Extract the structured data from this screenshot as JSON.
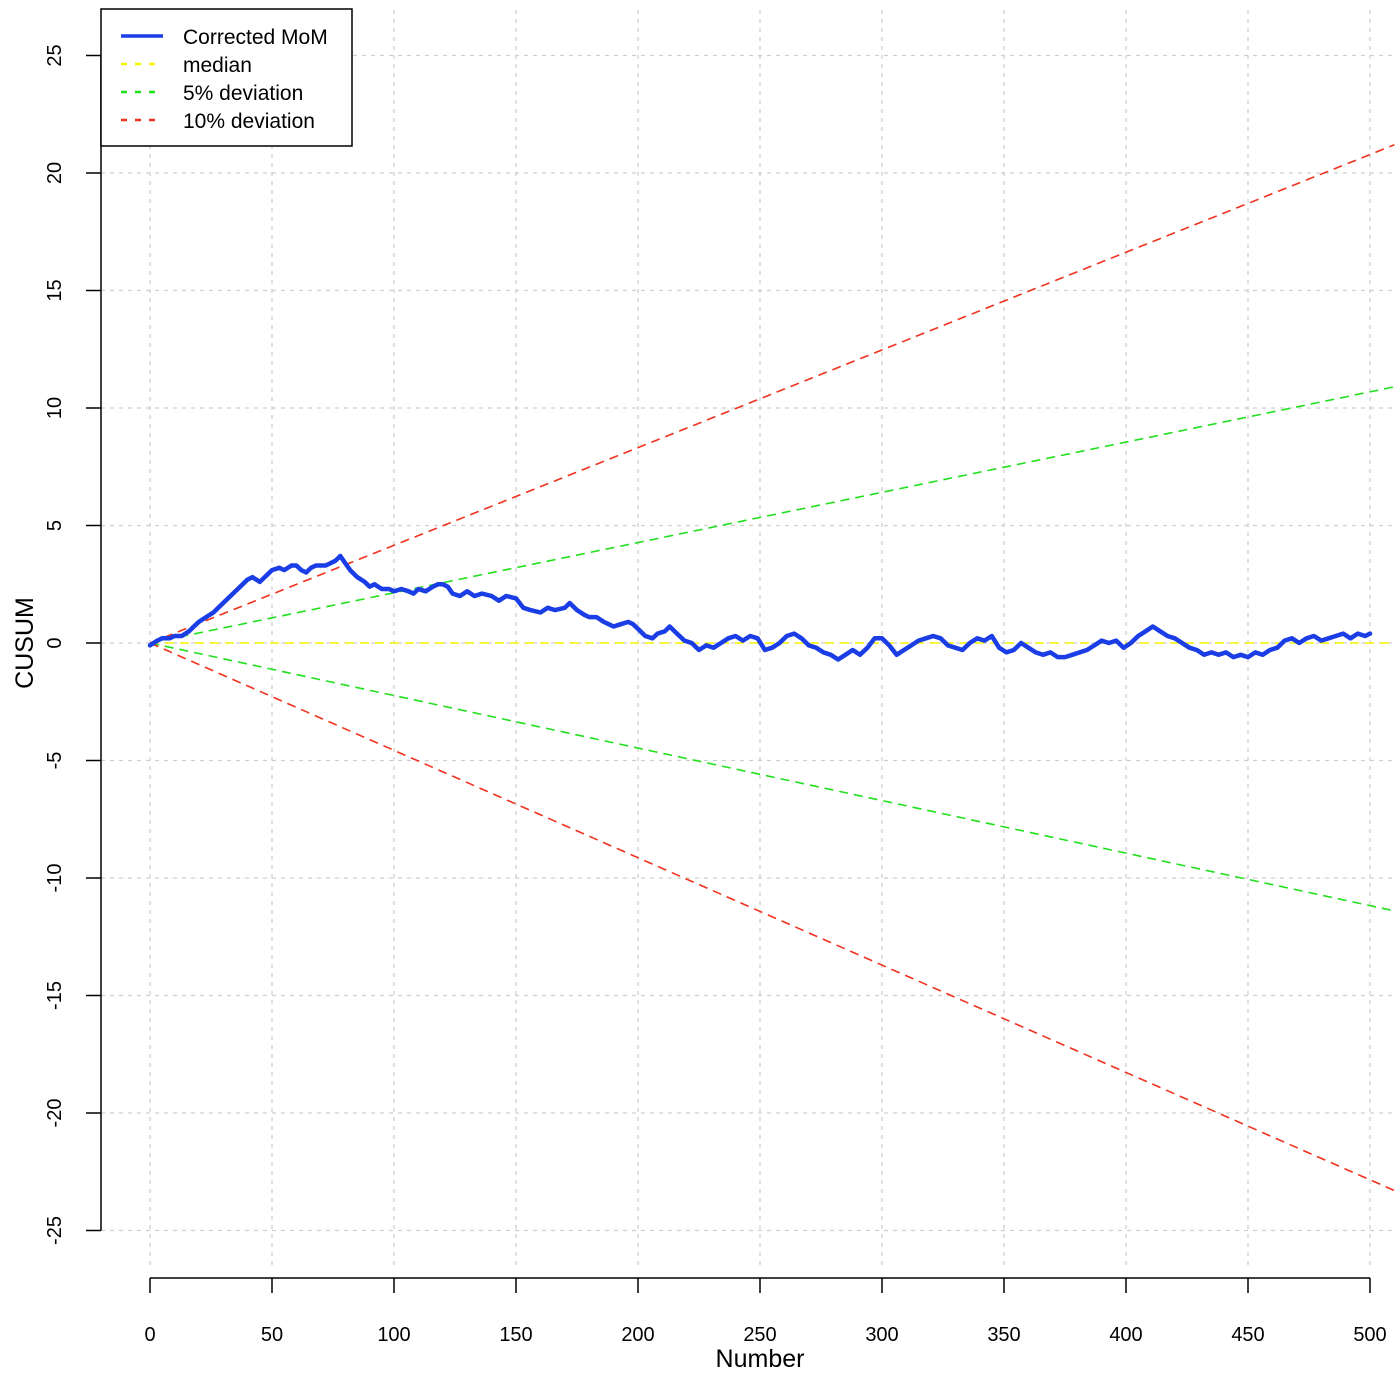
{
  "chart_data": {
    "type": "line",
    "title": "",
    "xlabel": "Number",
    "ylabel": "CUSUM",
    "xlim": [
      0,
      510
    ],
    "ylim": [
      -25,
      25
    ],
    "xticks": [
      0,
      50,
      100,
      150,
      200,
      250,
      300,
      350,
      400,
      450,
      500
    ],
    "yticks": [
      -25,
      -20,
      -15,
      -10,
      -5,
      0,
      5,
      10,
      15,
      20,
      25
    ],
    "grid": true,
    "legend_position": "top-left",
    "series": [
      {
        "name": "Corrected MoM",
        "color": "#1a3de6",
        "style": "solid",
        "points": [
          [
            0,
            -0.1
          ],
          [
            3,
            0.1
          ],
          [
            5,
            0.2
          ],
          [
            8,
            0.2
          ],
          [
            10,
            0.3
          ],
          [
            13,
            0.3
          ],
          [
            16,
            0.5
          ],
          [
            18,
            0.7
          ],
          [
            20,
            0.9
          ],
          [
            23,
            1.1
          ],
          [
            26,
            1.3
          ],
          [
            28,
            1.5
          ],
          [
            30,
            1.7
          ],
          [
            33,
            2.0
          ],
          [
            36,
            2.3
          ],
          [
            38,
            2.5
          ],
          [
            40,
            2.7
          ],
          [
            42,
            2.8
          ],
          [
            45,
            2.6
          ],
          [
            48,
            2.9
          ],
          [
            50,
            3.1
          ],
          [
            53,
            3.2
          ],
          [
            55,
            3.1
          ],
          [
            58,
            3.3
          ],
          [
            60,
            3.3
          ],
          [
            62,
            3.1
          ],
          [
            64,
            3.0
          ],
          [
            66,
            3.2
          ],
          [
            68,
            3.3
          ],
          [
            70,
            3.3
          ],
          [
            72,
            3.3
          ],
          [
            74,
            3.4
          ],
          [
            76,
            3.5
          ],
          [
            78,
            3.7
          ],
          [
            80,
            3.4
          ],
          [
            82,
            3.1
          ],
          [
            85,
            2.8
          ],
          [
            88,
            2.6
          ],
          [
            90,
            2.4
          ],
          [
            92,
            2.5
          ],
          [
            95,
            2.3
          ],
          [
            98,
            2.3
          ],
          [
            100,
            2.2
          ],
          [
            103,
            2.3
          ],
          [
            106,
            2.2
          ],
          [
            108,
            2.1
          ],
          [
            110,
            2.3
          ],
          [
            113,
            2.2
          ],
          [
            116,
            2.4
          ],
          [
            118,
            2.5
          ],
          [
            120,
            2.5
          ],
          [
            122,
            2.4
          ],
          [
            124,
            2.1
          ],
          [
            127,
            2.0
          ],
          [
            130,
            2.2
          ],
          [
            133,
            2.0
          ],
          [
            136,
            2.1
          ],
          [
            140,
            2.0
          ],
          [
            143,
            1.8
          ],
          [
            146,
            2.0
          ],
          [
            150,
            1.9
          ],
          [
            153,
            1.5
          ],
          [
            156,
            1.4
          ],
          [
            160,
            1.3
          ],
          [
            163,
            1.5
          ],
          [
            166,
            1.4
          ],
          [
            170,
            1.5
          ],
          [
            172,
            1.7
          ],
          [
            175,
            1.4
          ],
          [
            178,
            1.2
          ],
          [
            180,
            1.1
          ],
          [
            183,
            1.1
          ],
          [
            186,
            0.9
          ],
          [
            188,
            0.8
          ],
          [
            190,
            0.7
          ],
          [
            193,
            0.8
          ],
          [
            196,
            0.9
          ],
          [
            198,
            0.8
          ],
          [
            200,
            0.6
          ],
          [
            203,
            0.3
          ],
          [
            206,
            0.2
          ],
          [
            208,
            0.4
          ],
          [
            211,
            0.5
          ],
          [
            213,
            0.7
          ],
          [
            216,
            0.4
          ],
          [
            219,
            0.1
          ],
          [
            222,
            0.0
          ],
          [
            225,
            -0.3
          ],
          [
            228,
            -0.1
          ],
          [
            231,
            -0.2
          ],
          [
            234,
            0.0
          ],
          [
            237,
            0.2
          ],
          [
            240,
            0.3
          ],
          [
            243,
            0.1
          ],
          [
            246,
            0.3
          ],
          [
            249,
            0.2
          ],
          [
            252,
            -0.3
          ],
          [
            255,
            -0.2
          ],
          [
            258,
            0.0
          ],
          [
            261,
            0.3
          ],
          [
            264,
            0.4
          ],
          [
            267,
            0.2
          ],
          [
            270,
            -0.1
          ],
          [
            273,
            -0.2
          ],
          [
            276,
            -0.4
          ],
          [
            279,
            -0.5
          ],
          [
            282,
            -0.7
          ],
          [
            285,
            -0.5
          ],
          [
            288,
            -0.3
          ],
          [
            291,
            -0.5
          ],
          [
            294,
            -0.2
          ],
          [
            297,
            0.2
          ],
          [
            300,
            0.2
          ],
          [
            303,
            -0.1
          ],
          [
            306,
            -0.5
          ],
          [
            309,
            -0.3
          ],
          [
            312,
            -0.1
          ],
          [
            315,
            0.1
          ],
          [
            318,
            0.2
          ],
          [
            321,
            0.3
          ],
          [
            324,
            0.2
          ],
          [
            327,
            -0.1
          ],
          [
            330,
            -0.2
          ],
          [
            333,
            -0.3
          ],
          [
            336,
            0.0
          ],
          [
            339,
            0.2
          ],
          [
            342,
            0.1
          ],
          [
            345,
            0.3
          ],
          [
            348,
            -0.2
          ],
          [
            351,
            -0.4
          ],
          [
            354,
            -0.3
          ],
          [
            357,
            0.0
          ],
          [
            360,
            -0.2
          ],
          [
            363,
            -0.4
          ],
          [
            366,
            -0.5
          ],
          [
            369,
            -0.4
          ],
          [
            372,
            -0.6
          ],
          [
            375,
            -0.6
          ],
          [
            378,
            -0.5
          ],
          [
            381,
            -0.4
          ],
          [
            384,
            -0.3
          ],
          [
            387,
            -0.1
          ],
          [
            390,
            0.1
          ],
          [
            393,
            0.0
          ],
          [
            396,
            0.1
          ],
          [
            399,
            -0.2
          ],
          [
            402,
            0.0
          ],
          [
            405,
            0.3
          ],
          [
            408,
            0.5
          ],
          [
            411,
            0.7
          ],
          [
            414,
            0.5
          ],
          [
            417,
            0.3
          ],
          [
            420,
            0.2
          ],
          [
            423,
            0.0
          ],
          [
            426,
            -0.2
          ],
          [
            429,
            -0.3
          ],
          [
            432,
            -0.5
          ],
          [
            435,
            -0.4
          ],
          [
            438,
            -0.5
          ],
          [
            441,
            -0.4
          ],
          [
            444,
            -0.6
          ],
          [
            447,
            -0.5
          ],
          [
            450,
            -0.6
          ],
          [
            453,
            -0.4
          ],
          [
            456,
            -0.5
          ],
          [
            459,
            -0.3
          ],
          [
            462,
            -0.2
          ],
          [
            465,
            0.1
          ],
          [
            468,
            0.2
          ],
          [
            471,
            0.0
          ],
          [
            474,
            0.2
          ],
          [
            477,
            0.3
          ],
          [
            480,
            0.1
          ],
          [
            483,
            0.2
          ],
          [
            486,
            0.3
          ],
          [
            489,
            0.4
          ],
          [
            492,
            0.2
          ],
          [
            495,
            0.4
          ],
          [
            498,
            0.3
          ],
          [
            500,
            0.4
          ]
        ]
      },
      {
        "name": "median",
        "color": "#f5f500",
        "style": "dashed",
        "points": [
          [
            0,
            0
          ],
          [
            510,
            0
          ]
        ]
      },
      {
        "name": "5% deviation",
        "color": "#22e01e",
        "style": "dashed",
        "points_upper": [
          [
            0,
            0
          ],
          [
            510,
            10.9
          ]
        ],
        "points_lower": [
          [
            0,
            0
          ],
          [
            510,
            -11.4
          ]
        ]
      },
      {
        "name": "10% deviation",
        "color": "#f0321e",
        "style": "dashed",
        "points_upper": [
          [
            0,
            0
          ],
          [
            510,
            21.2
          ]
        ],
        "points_lower": [
          [
            0,
            0
          ],
          [
            510,
            -23.3
          ]
        ]
      }
    ]
  }
}
